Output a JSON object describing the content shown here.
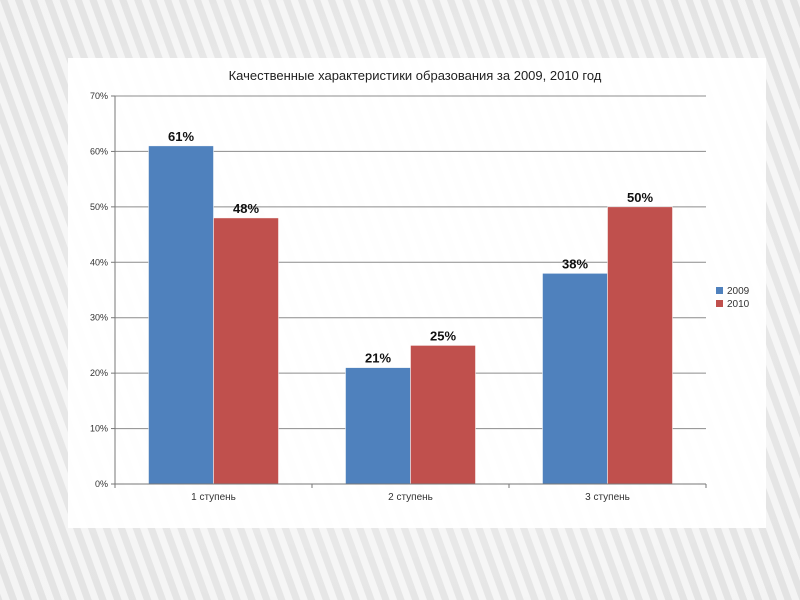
{
  "chart_data": {
    "type": "bar",
    "title": "Качественные характеристики образования за 2009, 2010 год",
    "categories": [
      "1 ступень",
      "2 ступень",
      "3 ступень"
    ],
    "series": [
      {
        "name": "2009",
        "values": [
          61,
          21,
          38
        ],
        "labels": [
          "61%",
          "21%",
          "38%"
        ],
        "color": "#4f81bd"
      },
      {
        "name": "2010",
        "values": [
          48,
          25,
          50
        ],
        "labels": [
          "48%",
          "25%",
          "50%"
        ],
        "color": "#c0504d"
      }
    ],
    "ylim": [
      0,
      70
    ],
    "yticks": [
      0,
      10,
      20,
      30,
      40,
      50,
      60,
      70
    ],
    "ytick_labels": [
      "0%",
      "10%",
      "20%",
      "30%",
      "40%",
      "50%",
      "60%",
      "70%"
    ],
    "xlabel": "",
    "ylabel": "",
    "grid": true,
    "legend_position": "right"
  }
}
